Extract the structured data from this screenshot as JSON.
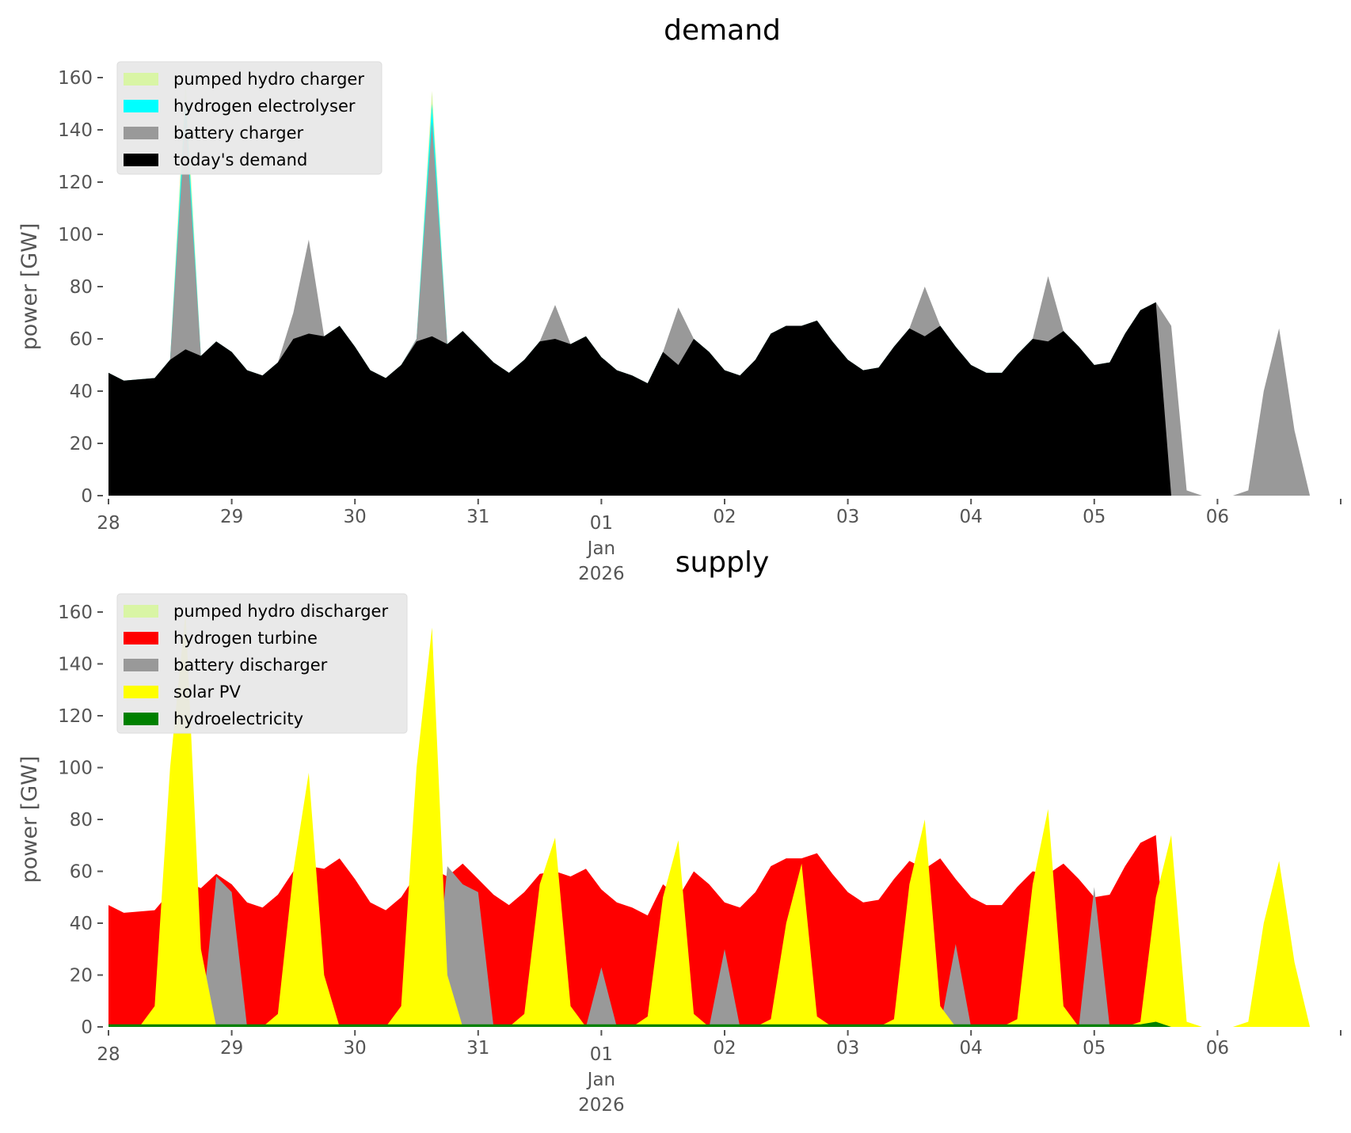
{
  "chart_data": [
    {
      "type": "area",
      "title": "demand",
      "xlabel": "",
      "ylabel": "power [GW]",
      "ylim": [
        0,
        165
      ],
      "yticks": [
        "0",
        "20",
        "40",
        "60",
        "80",
        "100",
        "120",
        "140",
        "160"
      ],
      "xticks": [
        "28",
        "29",
        "30",
        "31",
        "01",
        "02",
        "03",
        "04",
        "05",
        "06",
        ""
      ],
      "xtick_sub": [
        "Jan",
        "2026"
      ],
      "x_step_hours": 3,
      "x_start": "2025-12-28 00:00",
      "grid": false,
      "legend_position": "top-left",
      "series": [
        {
          "name": "pumped hydro charger",
          "color": "#d9f5a5",
          "values": [
            47,
            44,
            44.5,
            45,
            52,
            160,
            53.5,
            59,
            55,
            48,
            46,
            51,
            62,
            62,
            61,
            65,
            57,
            48,
            45,
            50,
            60,
            155,
            58,
            63,
            57,
            51,
            47,
            52,
            59,
            60,
            58,
            61,
            53,
            48,
            46,
            43,
            55,
            50,
            60,
            55,
            48,
            46,
            52,
            62,
            65,
            65,
            67,
            59,
            52,
            48,
            49,
            57,
            64,
            61,
            65,
            57,
            50,
            47,
            47,
            54,
            60,
            59,
            63,
            57,
            50,
            51,
            62,
            71,
            74,
            0,
            0,
            0,
            0,
            0,
            0,
            0,
            0,
            0,
            0
          ]
        },
        {
          "name": "hydrogen electrolyser",
          "color": "#00ffff",
          "values": [
            47,
            44,
            44.5,
            45,
            52,
            152,
            53.5,
            59,
            55,
            48,
            46,
            51,
            62,
            62,
            61,
            65,
            57,
            48,
            45,
            50,
            60,
            150,
            58,
            63,
            57,
            51,
            47,
            52,
            59,
            60,
            58,
            61,
            53,
            48,
            46,
            43,
            55,
            50,
            60,
            55,
            48,
            46,
            52,
            62,
            65,
            65,
            67,
            59,
            52,
            48,
            49,
            57,
            64,
            61,
            65,
            57,
            50,
            47,
            47,
            54,
            60,
            59,
            63,
            57,
            50,
            51,
            62,
            71,
            74,
            0,
            0,
            0,
            0,
            0,
            0,
            0,
            0,
            0,
            0
          ]
        },
        {
          "name": "battery charger",
          "color": "#999999",
          "values": [
            47,
            44,
            44.5,
            45,
            52,
            145,
            53.5,
            59,
            55,
            48,
            46,
            51,
            70,
            98,
            61,
            65,
            57,
            48,
            45,
            50,
            60,
            143,
            58,
            63,
            57,
            51,
            47,
            52,
            59,
            73,
            58,
            61,
            53,
            48,
            46,
            43,
            55,
            72,
            60,
            55,
            48,
            46,
            52,
            62,
            65,
            65,
            67,
            59,
            52,
            48,
            49,
            57,
            64,
            80,
            65,
            57,
            50,
            47,
            47,
            54,
            60,
            84,
            63,
            57,
            50,
            51,
            62,
            71,
            74,
            65,
            2,
            0,
            0,
            0,
            2,
            40,
            64,
            25,
            0
          ]
        },
        {
          "name": "today's demand",
          "color": "#000000",
          "values": [
            47,
            44,
            44.5,
            45,
            52,
            56,
            53.5,
            59,
            55,
            48,
            46,
            51,
            60,
            62,
            61,
            65,
            57,
            48,
            45,
            50,
            59,
            61,
            58,
            63,
            57,
            51,
            47,
            52,
            59,
            60,
            58,
            61,
            53,
            48,
            46,
            43,
            55,
            50,
            60,
            55,
            48,
            46,
            52,
            62,
            65,
            65,
            67,
            59,
            52,
            48,
            49,
            57,
            64,
            61,
            65,
            57,
            50,
            47,
            47,
            54,
            60,
            59,
            63,
            57,
            50,
            51,
            62,
            71,
            74,
            0,
            0,
            0,
            0,
            0,
            0,
            0,
            0,
            0,
            0
          ]
        }
      ]
    },
    {
      "type": "area",
      "title": "supply",
      "xlabel": "",
      "ylabel": "power [GW]",
      "ylim": [
        0,
        165
      ],
      "yticks": [
        "0",
        "20",
        "40",
        "60",
        "80",
        "100",
        "120",
        "140",
        "160"
      ],
      "xticks": [
        "28",
        "29",
        "30",
        "31",
        "01",
        "02",
        "03",
        "04",
        "05",
        "06",
        ""
      ],
      "xtick_sub": [
        "Jan",
        "2026"
      ],
      "x_step_hours": 3,
      "x_start": "2025-12-28 00:00",
      "grid": false,
      "legend_position": "top-left",
      "series": [
        {
          "name": "pumped hydro discharger",
          "color": "#d9f5a5",
          "values": [
            0,
            0,
            0,
            0,
            0,
            160,
            0,
            0,
            0,
            0,
            0,
            0,
            0,
            0,
            0,
            0,
            0,
            0,
            0,
            0,
            0,
            154,
            0,
            0,
            0,
            0,
            0,
            0,
            0,
            0,
            0,
            0,
            0,
            0,
            0,
            0,
            0,
            0,
            0,
            0,
            0,
            0,
            0,
            0,
            0,
            0,
            0,
            0,
            0,
            0,
            0,
            0,
            0,
            0,
            0,
            0,
            0,
            0,
            0,
            0,
            0,
            0,
            0,
            0,
            0,
            0,
            0,
            0,
            0,
            0,
            0,
            0,
            0,
            0,
            0,
            0,
            0,
            0,
            0
          ]
        },
        {
          "name": "hydrogen turbine",
          "color": "#ff0000",
          "values": [
            47,
            44,
            44.5,
            45,
            52,
            56,
            53.5,
            59,
            55,
            48,
            46,
            51,
            60,
            62,
            61,
            65,
            57,
            48,
            45,
            50,
            59,
            61,
            58,
            63,
            57,
            51,
            47,
            52,
            59,
            60,
            58,
            61,
            53,
            48,
            46,
            43,
            55,
            50,
            60,
            55,
            48,
            46,
            52,
            62,
            65,
            65,
            67,
            59,
            52,
            48,
            49,
            57,
            64,
            61,
            65,
            57,
            50,
            47,
            47,
            54,
            60,
            59,
            63,
            57,
            50,
            51,
            62,
            71,
            74,
            0,
            0,
            0,
            0,
            0,
            0,
            0,
            0,
            0,
            0
          ]
        },
        {
          "name": "battery discharger",
          "color": "#999999",
          "values": [
            0,
            0,
            0,
            0,
            0,
            0,
            0,
            58,
            52,
            0,
            0,
            0,
            0,
            0,
            0,
            0,
            0,
            0,
            0,
            0,
            0,
            0,
            62,
            55,
            52,
            0,
            0,
            0,
            0,
            0,
            0,
            0,
            23,
            0,
            0,
            0,
            0,
            0,
            0,
            0,
            30,
            0,
            0,
            0,
            0,
            0,
            0,
            0,
            0,
            0,
            0,
            0,
            0,
            0,
            0,
            32,
            0,
            0,
            0,
            0,
            0,
            0,
            0,
            0,
            54,
            0,
            0,
            0,
            0,
            0,
            0,
            0,
            0,
            0,
            0,
            0,
            0,
            0,
            0
          ]
        },
        {
          "name": "solar PV",
          "color": "#ffff00",
          "values": [
            0,
            0,
            0,
            8,
            100,
            160,
            30,
            0,
            0,
            0,
            0,
            5,
            60,
            98,
            20,
            0,
            0,
            0,
            0,
            8,
            100,
            154,
            20,
            0,
            0,
            0,
            0,
            5,
            55,
            73,
            8,
            0,
            0,
            0,
            0,
            4,
            50,
            72,
            5,
            0,
            0,
            0,
            0,
            3,
            40,
            63,
            4,
            0,
            0,
            0,
            0,
            3,
            55,
            80,
            8,
            0,
            0,
            0,
            0,
            3,
            55,
            84,
            8,
            0,
            0,
            0,
            0,
            2,
            50,
            74,
            2,
            0,
            0,
            0,
            2,
            40,
            64,
            25,
            0
          ]
        },
        {
          "name": "hydroelectricity",
          "color": "#008000",
          "values": [
            1,
            1,
            1,
            1,
            1,
            1,
            1,
            1,
            1,
            1,
            1,
            1,
            1,
            1,
            1,
            1,
            1,
            1,
            1,
            1,
            1,
            1,
            1,
            1,
            1,
            1,
            1,
            1,
            1,
            1,
            1,
            1,
            1,
            1,
            1,
            1,
            1,
            1,
            1,
            1,
            1,
            1,
            1,
            1,
            1,
            1,
            1,
            1,
            1,
            1,
            1,
            1,
            1,
            1,
            1,
            1,
            1,
            1,
            1,
            1,
            1,
            1,
            1,
            1,
            1,
            1,
            1,
            1,
            2,
            0,
            0,
            0,
            0,
            0,
            0,
            0,
            0,
            0,
            0
          ]
        }
      ]
    }
  ]
}
